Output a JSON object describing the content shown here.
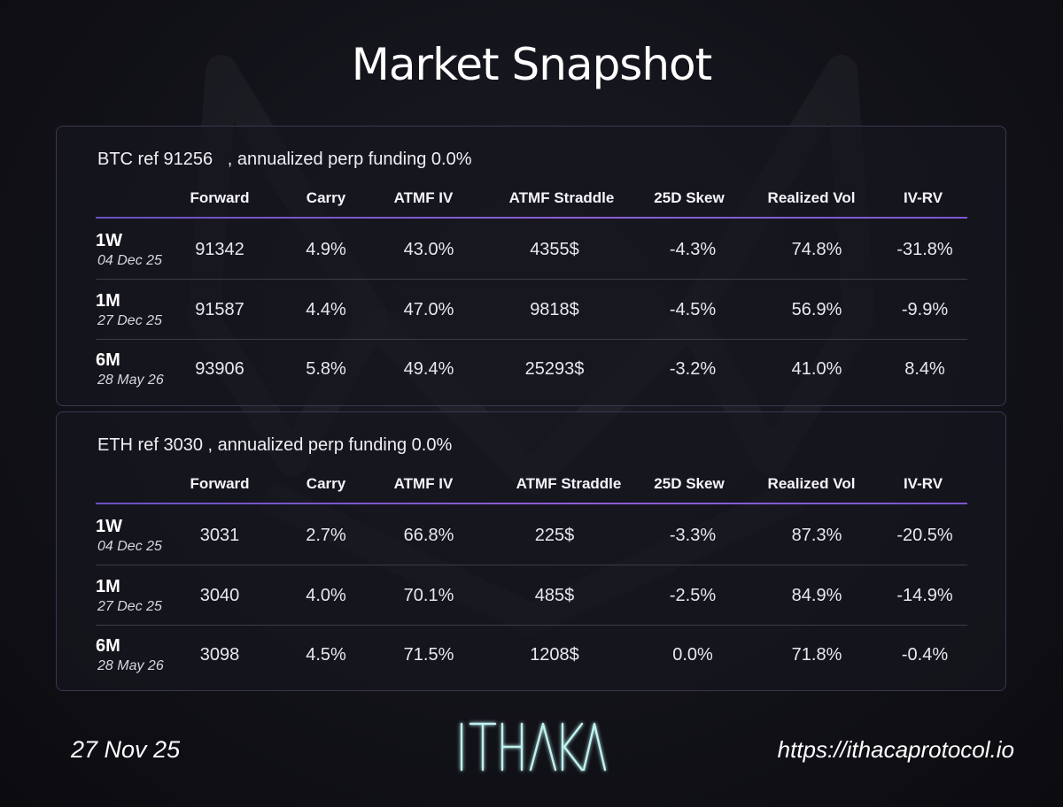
{
  "title": "Market Snapshot",
  "columns": [
    "Forward",
    "Carry",
    "ATMF IV",
    "ATMF Straddle",
    "25D Skew",
    "Realized Vol",
    "IV-RV"
  ],
  "btc": {
    "header": "BTC ref 91256   , annualized perp funding 0.0%",
    "rows": [
      {
        "tenor": "1W",
        "date": "04 Dec 25",
        "values": [
          "91342",
          "4.9%",
          "43.0%",
          "4355$",
          "-4.3%",
          "74.8%",
          "-31.8%"
        ]
      },
      {
        "tenor": "1M",
        "date": "27 Dec 25",
        "values": [
          "91587",
          "4.4%",
          "47.0%",
          "9818$",
          "-4.5%",
          "56.9%",
          "-9.9%"
        ]
      },
      {
        "tenor": "6M",
        "date": "28 May 26",
        "values": [
          "93906",
          "5.8%",
          "49.4%",
          "25293$",
          "-3.2%",
          "41.0%",
          "8.4%"
        ]
      }
    ]
  },
  "eth": {
    "header": "ETH ref 3030 , annualized perp funding 0.0%",
    "rows": [
      {
        "tenor": "1W",
        "date": "04 Dec 25",
        "values": [
          "3031",
          "2.7%",
          "66.8%",
          "225$",
          "-3.3%",
          "87.3%",
          "-20.5%"
        ]
      },
      {
        "tenor": "1M",
        "date": "27 Dec 25",
        "values": [
          "3040",
          "4.0%",
          "70.1%",
          "485$",
          "-2.5%",
          "84.9%",
          "-14.9%"
        ]
      },
      {
        "tenor": "6M",
        "date": "28 May 26",
        "values": [
          "3098",
          "4.5%",
          "71.5%",
          "1208$",
          "0.0%",
          "71.8%",
          "-0.4%"
        ]
      }
    ]
  },
  "footer": {
    "date": "27 Nov 25",
    "logo_text": "ITHACA",
    "url": "https://ithacaprotocol.io"
  },
  "colors": {
    "accent": "#7b57d1",
    "background": "#121219",
    "logo_glow": "#9fe8e6"
  }
}
